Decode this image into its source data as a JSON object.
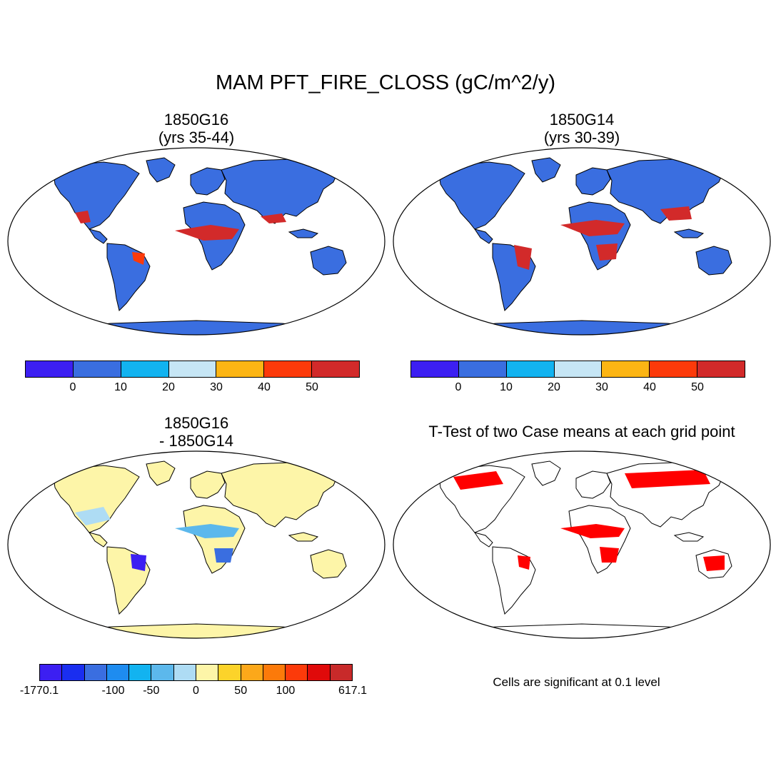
{
  "title": "MAM PFT_FIRE_CLOSS (gC/m^2/y)",
  "panels": {
    "top_left": {
      "line1": "1850G16",
      "line2": "(yrs 35-44)"
    },
    "top_right": {
      "line1": "1850G14",
      "line2": "(yrs 30-39)"
    },
    "bottom_left": {
      "line1": "1850G16",
      "line2": "- 1850G14"
    },
    "bottom_right": {
      "line1": "T-Test of two Case means at each grid point"
    }
  },
  "colorbar_top": {
    "colors": [
      "#3c1ff2",
      "#3a6ee0",
      "#12b3f0",
      "#c6e6f5",
      "#fcb514",
      "#fc3a0a",
      "#d22a2a"
    ],
    "labels": [
      "0",
      "10",
      "20",
      "30",
      "40",
      "50"
    ]
  },
  "colorbar_diff": {
    "colors": [
      "#3c1ff2",
      "#1a2ef0",
      "#3a6ee0",
      "#1e8cf0",
      "#12b3f0",
      "#5cb8ec",
      "#aedcf4",
      "#fdf5a8",
      "#fcd32a",
      "#fca81a",
      "#fc7a0a",
      "#fc3a0a",
      "#e00a0a",
      "#c82a2a"
    ],
    "labels": [
      "-1770.1",
      "-100",
      "-50",
      "0",
      "50",
      "100",
      "617.1"
    ]
  },
  "significance_note": "Cells are significant at 0.1 level",
  "colors": {
    "map_fill_abs": "#3a6ee0",
    "map_fill_diff": "#fdf5a8",
    "sig_color": "#ff0000",
    "hot": "#d22a2a",
    "warm": "#fc3a0a"
  }
}
